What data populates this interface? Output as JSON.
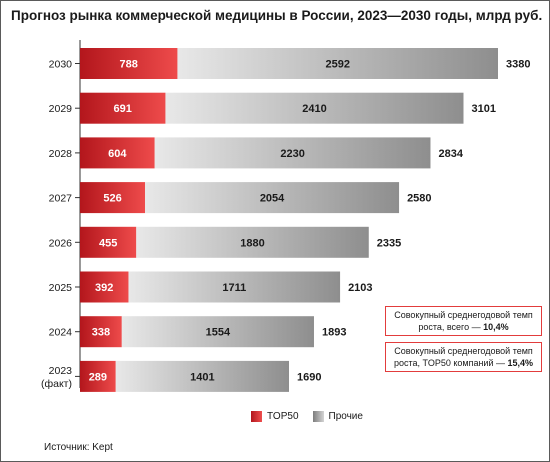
{
  "title": "Прогноз рынка коммерческой медицины в России, 2023—2030 годы, млрд руб.",
  "chart_data": {
    "type": "bar",
    "orientation": "horizontal",
    "stacked": true,
    "categories": [
      "2030",
      "2029",
      "2028",
      "2027",
      "2026",
      "2025",
      "2024",
      "2023\n(факт)"
    ],
    "series": [
      {
        "name": "TOP50",
        "values": [
          788,
          691,
          604,
          526,
          455,
          392,
          338,
          289
        ],
        "color": "#e02a2e"
      },
      {
        "name": "Прочие",
        "values": [
          2592,
          2410,
          2230,
          2054,
          1880,
          1711,
          1554,
          1401
        ],
        "color": "#b5b5b5"
      }
    ],
    "totals": [
      3380,
      3101,
      2834,
      2580,
      2335,
      2103,
      1893,
      1690
    ],
    "xlim": [
      0,
      3380
    ],
    "legend_position": "bottom"
  },
  "notes": [
    {
      "line1": "Совокупный среднегодовой темп",
      "line2_prefix": "роста, всего — ",
      "line2_value": "10,4%"
    },
    {
      "line1": "Совокупный среднегодовой темп",
      "line2_prefix": "роста, TOP50 компаний — ",
      "line2_value": "15,4%"
    }
  ],
  "legend": {
    "top50": "TOP50",
    "other": "Прочие"
  },
  "source": "Источник: Kept"
}
